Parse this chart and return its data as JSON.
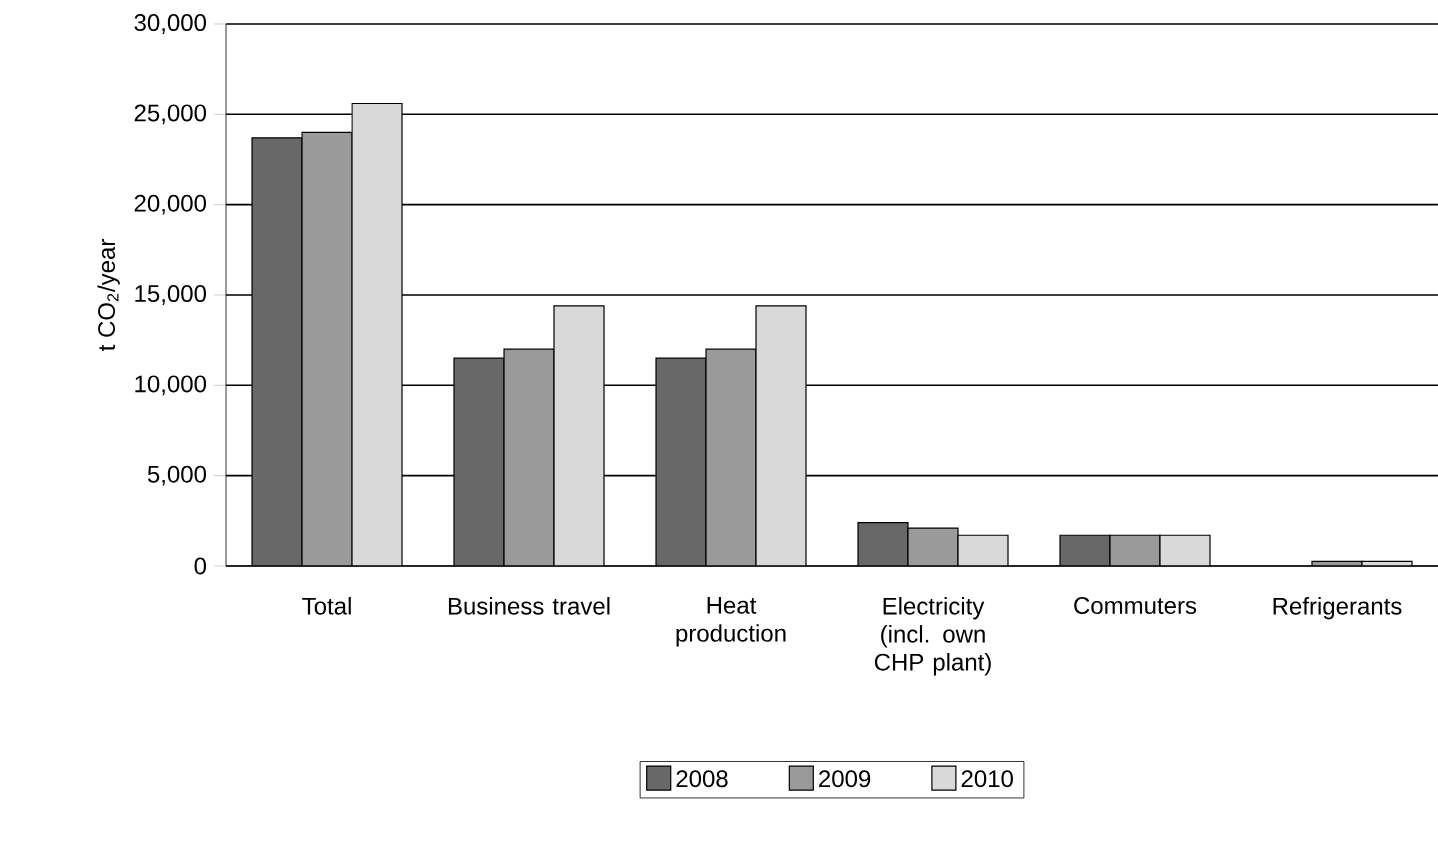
{
  "chart_data": {
    "type": "bar",
    "ylabel": "t CO$_{2}$/year",
    "categories": [
      "Total",
      "Business travel",
      "Heat production",
      "Electricity (incl. own CHP plant)",
      "Commuters",
      "Refrigerants"
    ],
    "series": [
      {
        "name": "2008",
        "color": "#686868",
        "values": [
          23700,
          11500,
          11500,
          2400,
          1700,
          null
        ]
      },
      {
        "name": "2009",
        "color": "#9a9a9a",
        "values": [
          24000,
          12000,
          12000,
          2100,
          1700,
          250
        ]
      },
      {
        "name": "2010",
        "color": "#d9d9d9",
        "values": [
          25600,
          14400,
          14400,
          1700,
          1700,
          250
        ]
      }
    ],
    "ylim": [
      0,
      30000
    ],
    "yticks": [
      {
        "value": 0,
        "label": "0"
      },
      {
        "value": 5000,
        "label": "5,000"
      },
      {
        "value": 10000,
        "label": "10,000"
      },
      {
        "value": 15000,
        "label": "15,000"
      },
      {
        "value": 20000,
        "label": "20,000"
      },
      {
        "value": 25000,
        "label": "25,000"
      },
      {
        "value": 30000,
        "label": "30,000"
      }
    ],
    "grid": "y",
    "legend": "bottom"
  }
}
